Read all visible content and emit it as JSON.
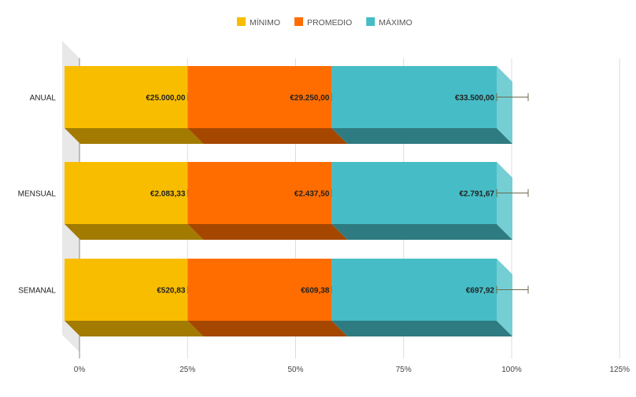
{
  "chart_data": {
    "type": "bar",
    "stacked": "percent",
    "three_d": true,
    "categories": [
      "ANUAL",
      "MENSUAL",
      "SEMANAL"
    ],
    "series": [
      {
        "name": "MÍNIMO",
        "color": "#f9bd00",
        "values": [
          25000.0,
          2083.33,
          520.83
        ],
        "labels": [
          "€25.000,00",
          "€2.083,33",
          "€520,83"
        ]
      },
      {
        "name": "PROMEDIO",
        "color": "#ff6d00",
        "values": [
          29250.0,
          2437.5,
          609.38
        ],
        "labels": [
          "€29.250,00",
          "€2.437,50",
          "€609,38"
        ]
      },
      {
        "name": "MÁXIMO",
        "color": "#46bdc6",
        "values": [
          33500.0,
          2791.67,
          697.92
        ],
        "labels": [
          "€33.500,00",
          "€2.791,67",
          "€697,92"
        ]
      }
    ],
    "xticks": [
      "0%",
      "25%",
      "50%",
      "75%",
      "100%",
      "125%"
    ],
    "xlim": [
      0,
      1.25
    ],
    "error_bars": true,
    "legend": "top-center",
    "grid": true
  }
}
